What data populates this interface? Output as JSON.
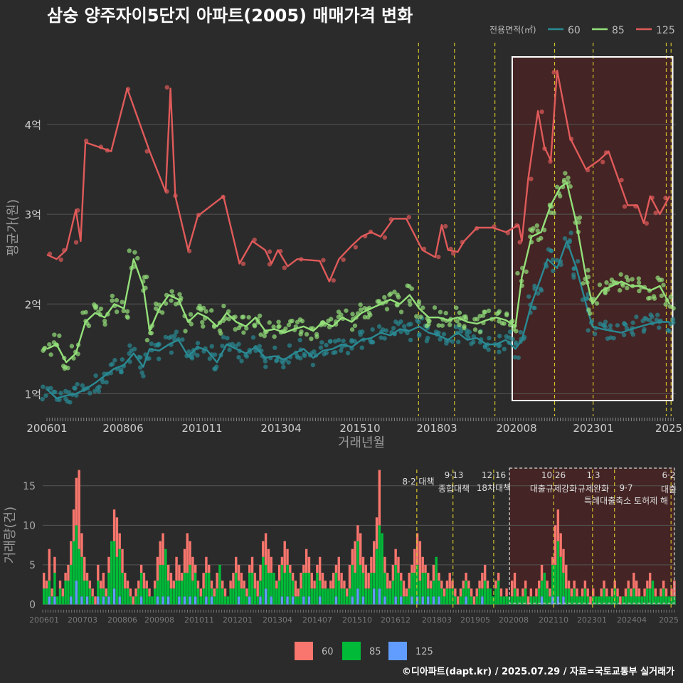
{
  "title": "삼숭 양주자이5단지 아파트(2005) 매매가격 변화",
  "legend": {
    "title": "전용면적(㎡)",
    "items": [
      {
        "label": "60",
        "color": "#2a8a94"
      },
      {
        "label": "85",
        "color": "#94e07a"
      },
      {
        "label": "125",
        "color": "#e05a5a"
      }
    ]
  },
  "bottom_legend": {
    "items": [
      {
        "label": "60",
        "color": "#f8766d"
      },
      {
        "label": "85",
        "color": "#00ba38"
      },
      {
        "label": "125",
        "color": "#619cff"
      }
    ]
  },
  "footer": "©디아파트(dapt.kr) / 2025.07.29 / 자료=국토교통부 실거래가",
  "chart_data": [
    {
      "type": "line",
      "title": "삼숭 양주자이5단지 아파트(2005) 매매가격 변화",
      "xlabel": "거래년월",
      "ylabel": "평균가(원)",
      "xlim": [
        2006.0,
        2025.6
      ],
      "ylim": [
        0.75,
        4.95
      ],
      "x_ticks": [
        "200601",
        "200806",
        "201011",
        "201304",
        "201510",
        "201803",
        "202008",
        "202301",
        "2025"
      ],
      "y_ticks": [
        "1억",
        "2억",
        "3억",
        "4억"
      ],
      "highlight_x": [
        2020.5,
        2025.5
      ],
      "policy_lines_x": [
        2017.58,
        2018.7,
        2019.96,
        2021.82,
        2023.02,
        2025.3,
        2025.45
      ],
      "series": [
        {
          "name": "60",
          "color": "#2a8a94",
          "points": [
            [
              2006.0,
              1.05
            ],
            [
              2006.3,
              0.95
            ],
            [
              2006.6,
              0.98
            ],
            [
              2006.9,
              1.0
            ],
            [
              2007.2,
              1.05
            ],
            [
              2007.5,
              1.12
            ],
            [
              2007.8,
              1.2
            ],
            [
              2008.1,
              1.28
            ],
            [
              2008.4,
              1.32
            ],
            [
              2008.7,
              1.45
            ],
            [
              2009.0,
              1.3
            ],
            [
              2009.2,
              1.5
            ],
            [
              2009.5,
              1.48
            ],
            [
              2009.8,
              1.55
            ],
            [
              2010.1,
              1.6
            ],
            [
              2010.4,
              1.42
            ],
            [
              2010.7,
              1.52
            ],
            [
              2011.0,
              1.48
            ],
            [
              2011.3,
              1.35
            ],
            [
              2011.6,
              1.55
            ],
            [
              2011.9,
              1.5
            ],
            [
              2012.2,
              1.45
            ],
            [
              2012.5,
              1.52
            ],
            [
              2012.8,
              1.4
            ],
            [
              2013.1,
              1.42
            ],
            [
              2013.4,
              1.38
            ],
            [
              2013.7,
              1.45
            ],
            [
              2014.0,
              1.5
            ],
            [
              2014.3,
              1.4
            ],
            [
              2014.6,
              1.48
            ],
            [
              2014.9,
              1.5
            ],
            [
              2015.2,
              1.55
            ],
            [
              2015.5,
              1.52
            ],
            [
              2015.8,
              1.6
            ],
            [
              2016.1,
              1.62
            ],
            [
              2016.4,
              1.68
            ],
            [
              2016.7,
              1.65
            ],
            [
              2017.0,
              1.72
            ],
            [
              2017.3,
              1.7
            ],
            [
              2017.6,
              1.75
            ],
            [
              2017.9,
              1.68
            ],
            [
              2018.2,
              1.65
            ],
            [
              2018.5,
              1.6
            ],
            [
              2018.8,
              1.68
            ],
            [
              2019.1,
              1.6
            ],
            [
              2019.4,
              1.62
            ],
            [
              2019.7,
              1.55
            ],
            [
              2020.0,
              1.55
            ],
            [
              2020.3,
              1.6
            ],
            [
              2020.6,
              1.5
            ],
            [
              2020.8,
              1.6
            ],
            [
              2021.1,
              2.0
            ],
            [
              2021.3,
              2.2
            ],
            [
              2021.6,
              2.5
            ],
            [
              2021.9,
              2.4
            ],
            [
              2022.2,
              2.7
            ],
            [
              2022.5,
              2.4
            ],
            [
              2022.8,
              2.0
            ],
            [
              2023.0,
              1.75
            ],
            [
              2023.3,
              1.72
            ],
            [
              2023.6,
              1.7
            ],
            [
              2023.9,
              1.68
            ],
            [
              2024.2,
              1.72
            ],
            [
              2024.5,
              1.75
            ],
            [
              2024.8,
              1.78
            ],
            [
              2025.1,
              1.8
            ],
            [
              2025.4,
              1.8
            ]
          ]
        },
        {
          "name": "85",
          "color": "#94e07a",
          "points": [
            [
              2006.0,
              1.5
            ],
            [
              2006.3,
              1.55
            ],
            [
              2006.6,
              1.35
            ],
            [
              2006.9,
              1.45
            ],
            [
              2007.2,
              1.8
            ],
            [
              2007.5,
              1.9
            ],
            [
              2007.8,
              1.85
            ],
            [
              2008.1,
              2.0
            ],
            [
              2008.4,
              1.95
            ],
            [
              2008.7,
              2.5
            ],
            [
              2009.0,
              2.2
            ],
            [
              2009.2,
              1.7
            ],
            [
              2009.5,
              1.95
            ],
            [
              2009.8,
              2.1
            ],
            [
              2010.1,
              2.05
            ],
            [
              2010.4,
              1.8
            ],
            [
              2010.7,
              1.9
            ],
            [
              2011.0,
              1.85
            ],
            [
              2011.3,
              1.75
            ],
            [
              2011.6,
              1.9
            ],
            [
              2011.9,
              1.8
            ],
            [
              2012.2,
              1.75
            ],
            [
              2012.5,
              1.85
            ],
            [
              2012.8,
              1.7
            ],
            [
              2013.1,
              1.72
            ],
            [
              2013.4,
              1.68
            ],
            [
              2013.7,
              1.72
            ],
            [
              2014.0,
              1.75
            ],
            [
              2014.3,
              1.7
            ],
            [
              2014.6,
              1.8
            ],
            [
              2014.9,
              1.75
            ],
            [
              2015.2,
              1.85
            ],
            [
              2015.5,
              1.8
            ],
            [
              2015.8,
              1.9
            ],
            [
              2016.1,
              1.95
            ],
            [
              2016.4,
              2.0
            ],
            [
              2016.7,
              2.05
            ],
            [
              2017.0,
              2.0
            ],
            [
              2017.3,
              2.1
            ],
            [
              2017.6,
              1.95
            ],
            [
              2017.9,
              1.85
            ],
            [
              2018.2,
              1.85
            ],
            [
              2018.5,
              1.82
            ],
            [
              2018.8,
              1.85
            ],
            [
              2019.1,
              1.8
            ],
            [
              2019.4,
              1.78
            ],
            [
              2019.7,
              1.82
            ],
            [
              2020.0,
              1.85
            ],
            [
              2020.3,
              1.82
            ],
            [
              2020.6,
              1.75
            ],
            [
              2020.8,
              2.3
            ],
            [
              2021.1,
              2.75
            ],
            [
              2021.4,
              2.8
            ],
            [
              2021.7,
              3.1
            ],
            [
              2022.0,
              3.3
            ],
            [
              2022.2,
              3.35
            ],
            [
              2022.5,
              2.9
            ],
            [
              2022.8,
              2.3
            ],
            [
              2023.0,
              2.0
            ],
            [
              2023.3,
              2.15
            ],
            [
              2023.6,
              2.2
            ],
            [
              2023.9,
              2.25
            ],
            [
              2024.2,
              2.2
            ],
            [
              2024.5,
              2.2
            ],
            [
              2024.8,
              2.15
            ],
            [
              2025.1,
              2.2
            ],
            [
              2025.4,
              2.0
            ]
          ]
        },
        {
          "name": "125",
          "color": "#e05a5a",
          "points": [
            [
              2006.0,
              2.55
            ],
            [
              2006.3,
              2.5
            ],
            [
              2006.6,
              2.6
            ],
            [
              2006.9,
              3.05
            ],
            [
              2007.05,
              2.7
            ],
            [
              2007.2,
              3.8
            ],
            [
              2007.6,
              3.75
            ],
            [
              2008.0,
              3.7
            ],
            [
              2008.5,
              4.4
            ],
            [
              2009.2,
              3.7
            ],
            [
              2009.7,
              3.25
            ],
            [
              2009.85,
              4.4
            ],
            [
              2010.0,
              3.2
            ],
            [
              2010.4,
              2.6
            ],
            [
              2010.7,
              2.98
            ],
            [
              2011.5,
              3.2
            ],
            [
              2012.0,
              2.45
            ],
            [
              2012.4,
              2.7
            ],
            [
              2012.8,
              2.6
            ],
            [
              2013.0,
              2.45
            ],
            [
              2013.2,
              2.6
            ],
            [
              2013.5,
              2.42
            ],
            [
              2013.8,
              2.5
            ],
            [
              2014.5,
              2.48
            ],
            [
              2014.8,
              2.25
            ],
            [
              2015.1,
              2.5
            ],
            [
              2015.5,
              2.65
            ],
            [
              2015.8,
              2.75
            ],
            [
              2016.1,
              2.8
            ],
            [
              2016.4,
              2.75
            ],
            [
              2016.8,
              2.95
            ],
            [
              2017.2,
              2.95
            ],
            [
              2017.7,
              2.6
            ],
            [
              2018.1,
              2.52
            ],
            [
              2018.3,
              2.88
            ],
            [
              2018.5,
              2.6
            ],
            [
              2018.8,
              2.58
            ],
            [
              2019.0,
              2.7
            ],
            [
              2019.4,
              2.85
            ],
            [
              2019.9,
              2.85
            ],
            [
              2020.3,
              2.8
            ],
            [
              2020.7,
              2.88
            ],
            [
              2020.8,
              2.7
            ],
            [
              2021.0,
              3.4
            ],
            [
              2021.3,
              4.15
            ],
            [
              2021.5,
              3.75
            ],
            [
              2021.7,
              3.6
            ],
            [
              2021.9,
              4.6
            ],
            [
              2022.3,
              3.85
            ],
            [
              2022.8,
              3.5
            ],
            [
              2023.2,
              3.6
            ],
            [
              2023.5,
              3.7
            ],
            [
              2023.8,
              3.4
            ],
            [
              2024.1,
              3.1
            ],
            [
              2024.4,
              3.1
            ],
            [
              2024.6,
              2.9
            ],
            [
              2024.8,
              3.2
            ],
            [
              2025.1,
              3.0
            ],
            [
              2025.4,
              3.2
            ]
          ]
        }
      ]
    },
    {
      "type": "bar",
      "ylabel": "거래량(건)",
      "xlim": [
        2006.0,
        2025.6
      ],
      "ylim": [
        -0.5,
        17.5
      ],
      "y_ticks": [
        0,
        5,
        10,
        15
      ],
      "x_ticks": [
        "200601",
        "200703",
        "200806",
        "200908",
        "201011",
        "201201",
        "201304",
        "201407",
        "201510",
        "201612",
        "201803",
        "201905",
        "202008",
        "202110",
        "202301",
        "202404",
        "2025"
      ],
      "annotations": [
        {
          "x": 2017.58,
          "date": "",
          "text": "8·2 대책"
        },
        {
          "x": 2018.7,
          "date": "9·13",
          "text": "종합대책"
        },
        {
          "x": 2019.96,
          "date": "12·16",
          "text": "18차대책"
        },
        {
          "x": 2021.82,
          "date": "10·26",
          "text": "대출규제강화"
        },
        {
          "x": 2023.02,
          "date": "1·3",
          "text": "규제완화"
        },
        {
          "x": 2023.7,
          "date": "9·7",
          "text": "특례대출축소 토허제 해"
        },
        {
          "x": 2025.45,
          "date": "6·2",
          "text": "대출"
        }
      ],
      "series": [
        {
          "name": "60",
          "color": "#f8766d"
        },
        {
          "name": "85",
          "color": "#00ba38"
        },
        {
          "name": "125",
          "color": "#619cff"
        }
      ],
      "volumes_total": [
        4,
        3,
        7,
        2,
        6,
        1,
        3,
        2,
        4,
        5,
        8,
        12,
        16,
        17,
        9,
        6,
        4,
        3,
        2,
        1,
        5,
        3,
        4,
        2,
        6,
        8,
        12,
        11,
        9,
        7,
        4,
        3,
        2,
        1,
        2,
        3,
        5,
        4,
        3,
        2,
        1,
        3,
        6,
        8,
        9,
        7,
        5,
        4,
        3,
        6,
        5,
        4,
        7,
        9,
        8,
        6,
        5,
        3,
        2,
        4,
        6,
        5,
        3,
        2,
        4,
        5,
        3,
        2,
        1,
        3,
        4,
        6,
        5,
        4,
        3,
        2,
        5,
        6,
        4,
        3,
        5,
        8,
        9,
        7,
        6,
        4,
        3,
        5,
        6,
        8,
        7,
        5,
        4,
        3,
        2,
        4,
        5,
        7,
        6,
        4,
        3,
        5,
        6,
        4,
        3,
        2,
        3,
        4,
        5,
        6,
        4,
        3,
        2,
        5,
        7,
        8,
        10,
        9,
        6,
        5,
        4,
        6,
        8,
        11,
        17,
        9,
        6,
        4,
        3,
        5,
        7,
        6,
        4,
        3,
        2,
        4,
        5,
        7,
        9,
        8,
        6,
        5,
        4,
        3,
        5,
        6,
        4,
        3,
        2,
        3,
        4,
        3,
        2,
        1,
        2,
        3,
        4,
        3,
        2,
        1,
        2,
        3,
        4,
        5,
        3,
        2,
        1,
        3,
        4,
        2,
        1,
        2,
        1,
        3,
        4,
        2,
        1,
        2,
        3,
        1,
        2,
        1,
        2,
        3,
        5,
        4,
        3,
        2,
        6,
        10,
        12,
        9,
        7,
        5,
        3,
        2,
        3,
        2,
        1,
        2,
        3,
        2,
        1,
        2,
        1,
        1,
        2,
        3,
        2,
        1,
        2,
        3,
        2,
        1,
        1,
        2,
        3,
        2,
        4,
        3,
        2,
        1,
        2,
        3,
        4,
        3,
        2,
        1,
        2,
        3,
        2,
        1,
        2,
        3
      ],
      "volumes_85_share": [
        0.5,
        0.7,
        0.4,
        0.6,
        0.5,
        1.0,
        0.6,
        0.5,
        0.7,
        0.5,
        0.6,
        0.7,
        0.5,
        0.4,
        0.6,
        0.5,
        0.7,
        0.6,
        0.5,
        0.4
      ],
      "volumes_125_share": [
        0.1,
        0.0,
        0.2,
        0.0,
        0.1,
        0.0,
        0.15,
        0.0,
        0.1,
        0.0
      ]
    }
  ]
}
